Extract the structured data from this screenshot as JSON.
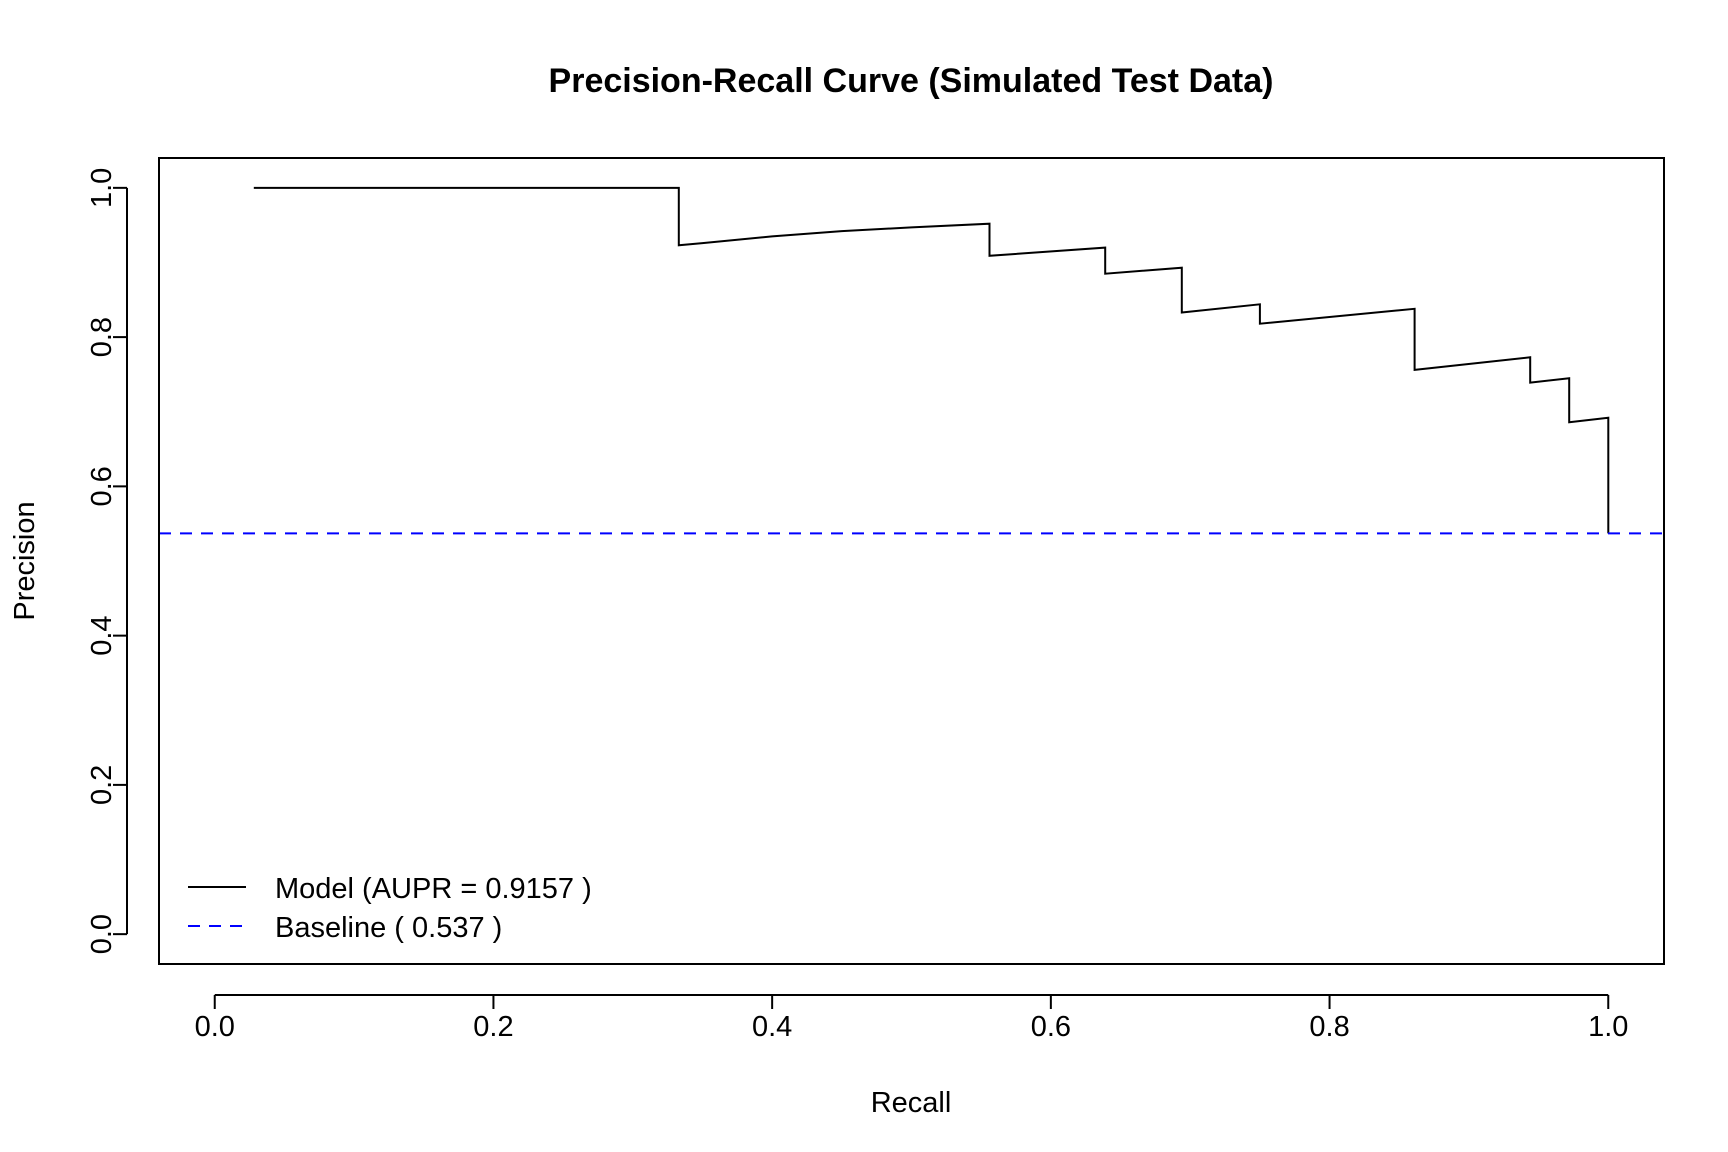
{
  "chart_data": {
    "type": "line",
    "title": "Precision-Recall Curve (Simulated Test Data)",
    "xlabel": "Recall",
    "ylabel": "Precision",
    "xlim": [
      -0.04,
      1.04
    ],
    "ylim": [
      -0.04,
      1.04
    ],
    "grid": false,
    "legend_position": "bottom-left",
    "x_ticks": [
      0.0,
      0.2,
      0.4,
      0.6,
      0.8,
      1.0
    ],
    "x_tick_labels": [
      "0.0",
      "0.2",
      "0.4",
      "0.6",
      "0.8",
      "1.0"
    ],
    "y_ticks": [
      0.0,
      0.2,
      0.4,
      0.6,
      0.8,
      1.0
    ],
    "y_tick_labels": [
      "0.0",
      "0.2",
      "0.4",
      "0.6",
      "0.8",
      "1.0"
    ],
    "series": [
      {
        "name": "Model (AUPR = 0.9157 )",
        "color": "#000000",
        "dash": "solid",
        "x": [
          0.028,
          0.333,
          0.333,
          0.35,
          0.4,
          0.45,
          0.5,
          0.556,
          0.556,
          0.639,
          0.639,
          0.694,
          0.694,
          0.75,
          0.75,
          0.861,
          0.861,
          0.944,
          0.944,
          0.972,
          0.972,
          1.0,
          1.0
        ],
        "y": [
          1.0,
          1.0,
          0.923,
          0.926,
          0.935,
          0.942,
          0.947,
          0.952,
          0.909,
          0.92,
          0.885,
          0.893,
          0.833,
          0.844,
          0.818,
          0.838,
          0.756,
          0.773,
          0.739,
          0.745,
          0.686,
          0.692,
          0.537
        ]
      },
      {
        "name": "Baseline ( 0.537 )",
        "color": "#0000ff",
        "dash": "dashed",
        "y_constant": 0.537
      }
    ]
  }
}
